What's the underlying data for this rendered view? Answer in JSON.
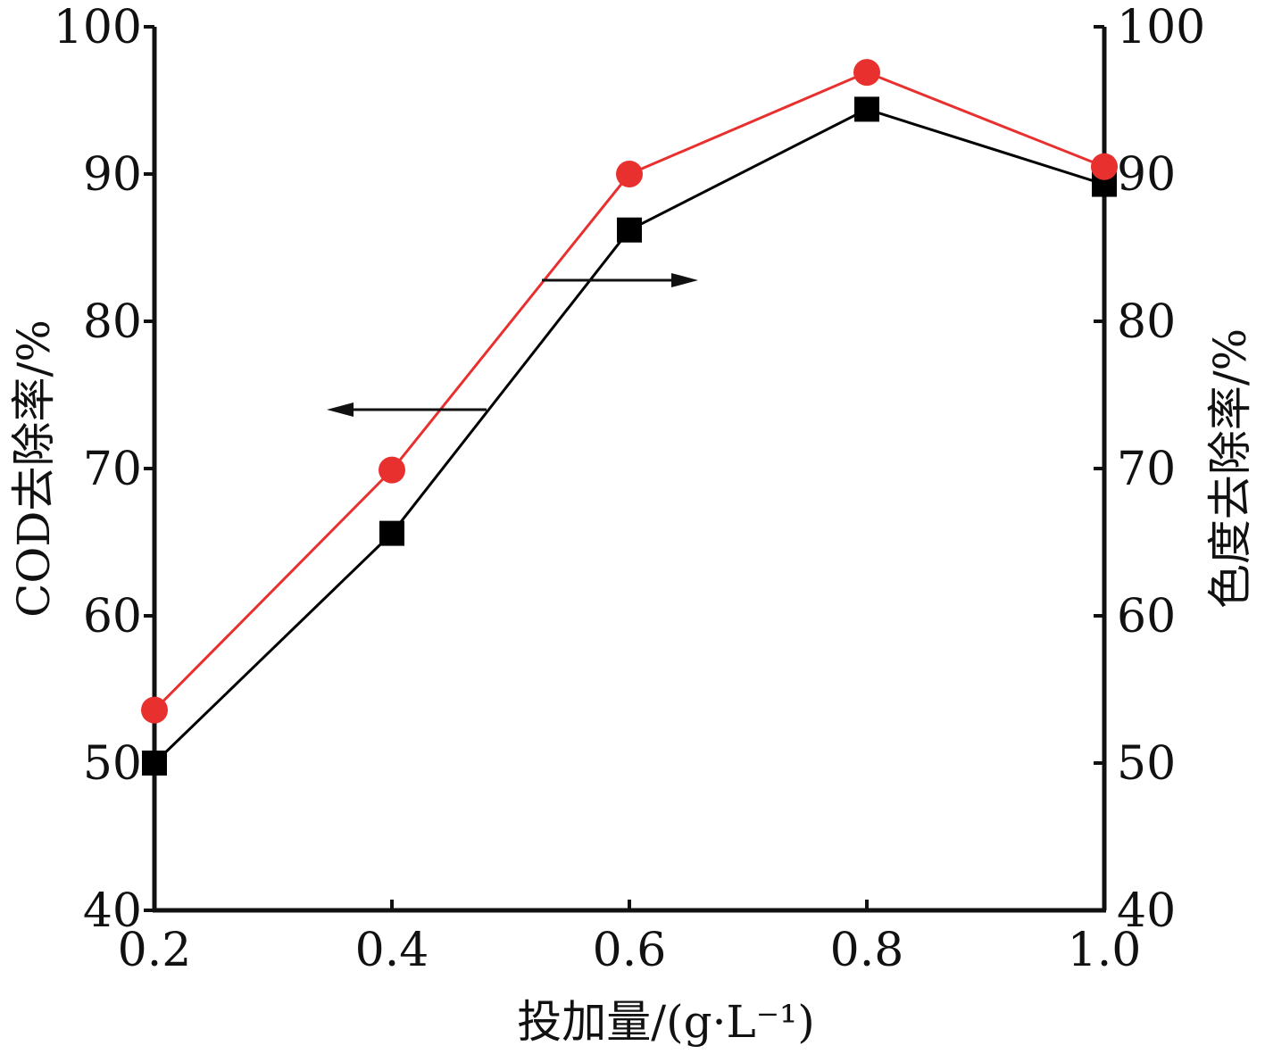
{
  "chart_data": {
    "type": "line",
    "xlabel": "投加量/(g·L⁻¹)",
    "ylabel_left": "COD去除率/%",
    "ylabel_right": "色度去除率/%",
    "x_ticks": [
      "0.2",
      "0.4",
      "0.6",
      "0.8",
      "1.0"
    ],
    "y_ticks": [
      "40",
      "50",
      "60",
      "70",
      "80",
      "90",
      "100"
    ],
    "xlim": [
      0.2,
      1.0
    ],
    "ylim_left": [
      40,
      100
    ],
    "ylim_right": [
      40,
      100
    ],
    "grid": false,
    "series": [
      {
        "axis": "left",
        "marker": "square",
        "color": "#000000",
        "x": [
          0.2,
          0.4,
          0.6,
          0.8,
          1.0
        ],
        "y": [
          50.0,
          65.6,
          86.2,
          94.4,
          89.3
        ]
      },
      {
        "axis": "right",
        "marker": "circle",
        "color": "#e8312f",
        "x": [
          0.2,
          0.4,
          0.6,
          0.8,
          1.0
        ],
        "y": [
          53.6,
          69.9,
          90.0,
          96.9,
          90.5
        ]
      }
    ],
    "annotations": [
      {
        "type": "arrow",
        "direction": "left",
        "points_to": "left-axis",
        "series": 0
      },
      {
        "type": "arrow",
        "direction": "right",
        "points_to": "right-axis",
        "series": 1
      }
    ]
  }
}
